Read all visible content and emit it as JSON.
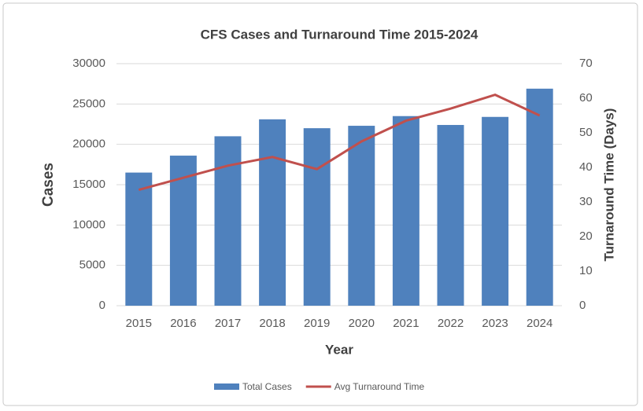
{
  "chart_data": {
    "type": "bar-line",
    "title": "CFS Cases and Turnaround Time 2015-2024",
    "x_label": "Year",
    "y_label": "Cases",
    "y2_label": "Turnaround Time (Days)",
    "categories": [
      "2015",
      "2016",
      "2017",
      "2018",
      "2019",
      "2020",
      "2021",
      "2022",
      "2023",
      "2024"
    ],
    "series": [
      {
        "name": "Total Cases",
        "type": "bar",
        "color": "#4f81bd",
        "values": [
          16500,
          18600,
          21000,
          23100,
          22000,
          22300,
          23500,
          22400,
          23400,
          26900
        ]
      },
      {
        "name": "Avg Turnaround Time",
        "type": "line",
        "axis": "y2",
        "color": "#c0504d",
        "values": [
          33.5,
          37,
          40.5,
          43,
          39.5,
          47.5,
          53.5,
          57,
          61,
          55
        ]
      }
    ],
    "ylim": [
      0,
      30000
    ],
    "yticks": [
      0,
      5000,
      10000,
      15000,
      20000,
      25000,
      30000
    ],
    "y2lim": [
      0,
      70
    ],
    "y2ticks": [
      0,
      10,
      20,
      30,
      40,
      50,
      60,
      70
    ],
    "grid": true,
    "legend": "bottom"
  }
}
